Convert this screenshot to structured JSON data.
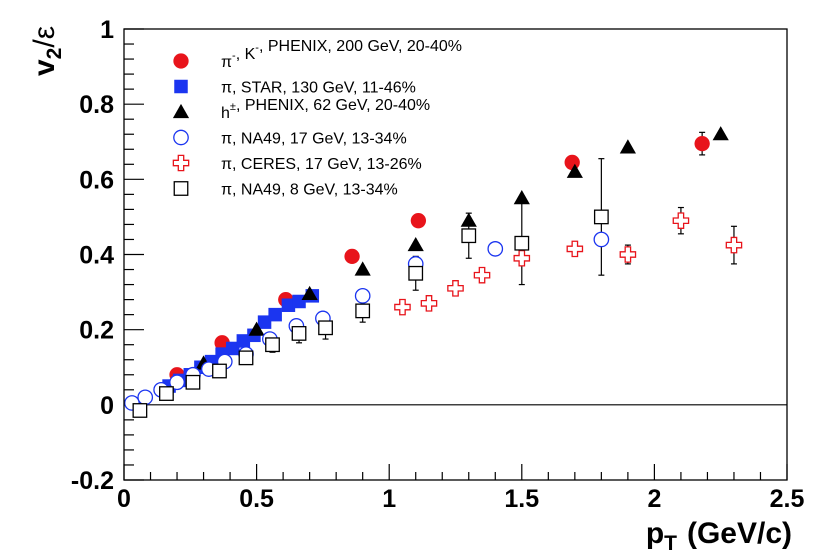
{
  "chart_data": {
    "type": "scatter",
    "title": "",
    "xlabel": "p",
    "xlabel_sub": "T",
    "xlabel_unit": "(GeV/c)",
    "ylabel": "v",
    "ylabel_sub": "2",
    "ylabel_tail": "/ε",
    "xlim": [
      0,
      2.5
    ],
    "ylim": [
      -0.2,
      1
    ],
    "x_ticks": [
      "0",
      "0.5",
      "1",
      "1.5",
      "2",
      "2.5"
    ],
    "x_tick_values": [
      0,
      0.5,
      1,
      1.5,
      2,
      2.5
    ],
    "y_ticks": [
      "-0.2",
      "0",
      "0.2",
      "0.4",
      "0.6",
      "0.8",
      "1"
    ],
    "y_tick_values": [
      -0.2,
      0,
      0.2,
      0.4,
      0.6,
      0.8,
      1
    ],
    "zero_line": true,
    "legend_position": "top-left",
    "series": [
      {
        "name": "π⁻, K⁻, PHENIX, 200 GeV, 20-40%",
        "legend": [
          "π",
          "⁻",
          ", K",
          "⁻",
          ", PHENIX, 200 GeV, 20-40%"
        ],
        "marker": "filled-circle",
        "color": "#e8141b",
        "points": [
          {
            "x": 0.2,
            "y": 0.08
          },
          {
            "x": 0.37,
            "y": 0.165
          },
          {
            "x": 0.61,
            "y": 0.28
          },
          {
            "x": 0.86,
            "y": 0.395
          },
          {
            "x": 1.11,
            "y": 0.49
          },
          {
            "x": 1.69,
            "y": 0.645
          },
          {
            "x": 2.18,
            "y": 0.695,
            "err": 0.03
          }
        ]
      },
      {
        "name": "π, STAR, 130 GeV, 11-46%",
        "legend": [
          "π, STAR, 130 GeV, 11-46%"
        ],
        "marker": "filled-square",
        "color": "#1b35f0",
        "points": [
          {
            "x": 0.17,
            "y": 0.05
          },
          {
            "x": 0.21,
            "y": 0.065
          },
          {
            "x": 0.25,
            "y": 0.08
          },
          {
            "x": 0.29,
            "y": 0.1
          },
          {
            "x": 0.33,
            "y": 0.115
          },
          {
            "x": 0.37,
            "y": 0.135
          },
          {
            "x": 0.41,
            "y": 0.15
          },
          {
            "x": 0.45,
            "y": 0.17
          },
          {
            "x": 0.49,
            "y": 0.185
          },
          {
            "x": 0.53,
            "y": 0.22
          },
          {
            "x": 0.57,
            "y": 0.24
          },
          {
            "x": 0.62,
            "y": 0.265
          },
          {
            "x": 0.66,
            "y": 0.275
          },
          {
            "x": 0.71,
            "y": 0.29
          }
        ]
      },
      {
        "name": "h±, PHENIX, 62 GeV, 20-40%",
        "legend": [
          "h",
          "±",
          ", PHENIX, 62 GeV, 20-40%"
        ],
        "marker": "filled-triangle",
        "color": "#000000",
        "points": [
          {
            "x": 0.3,
            "y": 0.11
          },
          {
            "x": 0.5,
            "y": 0.2
          },
          {
            "x": 0.7,
            "y": 0.295
          },
          {
            "x": 0.9,
            "y": 0.36
          },
          {
            "x": 1.1,
            "y": 0.425
          },
          {
            "x": 1.3,
            "y": 0.49
          },
          {
            "x": 1.5,
            "y": 0.55
          },
          {
            "x": 1.7,
            "y": 0.62
          },
          {
            "x": 1.9,
            "y": 0.685
          },
          {
            "x": 2.25,
            "y": 0.72
          }
        ]
      },
      {
        "name": "π, NA49, 17 GeV, 13-34%",
        "legend": [
          "π, NA49, 17 GeV, 13-34%"
        ],
        "marker": "open-circle",
        "color": "#1b35f0",
        "points": [
          {
            "x": 0.03,
            "y": 0.005
          },
          {
            "x": 0.08,
            "y": 0.02
          },
          {
            "x": 0.14,
            "y": 0.04
          },
          {
            "x": 0.2,
            "y": 0.06
          },
          {
            "x": 0.26,
            "y": 0.08
          },
          {
            "x": 0.32,
            "y": 0.095
          },
          {
            "x": 0.38,
            "y": 0.115
          },
          {
            "x": 0.46,
            "y": 0.135
          },
          {
            "x": 0.55,
            "y": 0.175
          },
          {
            "x": 0.65,
            "y": 0.21
          },
          {
            "x": 0.75,
            "y": 0.23
          },
          {
            "x": 0.9,
            "y": 0.29
          },
          {
            "x": 1.1,
            "y": 0.375
          },
          {
            "x": 1.4,
            "y": 0.415
          },
          {
            "x": 1.8,
            "y": 0.44
          }
        ]
      },
      {
        "name": "π, CERES, 17 GeV, 13-26%",
        "legend": [
          "π, CERES, 17 GeV, 13-26%"
        ],
        "marker": "open-cross",
        "color": "#e8141b",
        "points": [
          {
            "x": 1.05,
            "y": 0.26
          },
          {
            "x": 1.15,
            "y": 0.27
          },
          {
            "x": 1.25,
            "y": 0.31
          },
          {
            "x": 1.35,
            "y": 0.345
          },
          {
            "x": 1.5,
            "y": 0.39,
            "err": 0.02
          },
          {
            "x": 1.7,
            "y": 0.415
          },
          {
            "x": 1.9,
            "y": 0.4,
            "err": 0.025
          },
          {
            "x": 2.1,
            "y": 0.49,
            "err": 0.035
          },
          {
            "x": 2.3,
            "y": 0.425,
            "err": 0.05
          }
        ]
      },
      {
        "name": "π, NA49, 8 GeV, 13-34%",
        "legend": [
          "π, NA49, 8 GeV, 13-34%"
        ],
        "marker": "open-square",
        "color": "#000000",
        "points": [
          {
            "x": 0.06,
            "y": -0.015
          },
          {
            "x": 0.16,
            "y": 0.03
          },
          {
            "x": 0.26,
            "y": 0.06
          },
          {
            "x": 0.36,
            "y": 0.09
          },
          {
            "x": 0.46,
            "y": 0.125
          },
          {
            "x": 0.56,
            "y": 0.16,
            "err": 0.02
          },
          {
            "x": 0.66,
            "y": 0.19,
            "err": 0.025
          },
          {
            "x": 0.76,
            "y": 0.205,
            "err": 0.03
          },
          {
            "x": 0.9,
            "y": 0.25,
            "err": 0.03
          },
          {
            "x": 1.1,
            "y": 0.35,
            "err": 0.045
          },
          {
            "x": 1.3,
            "y": 0.45,
            "err": 0.06
          },
          {
            "x": 1.5,
            "y": 0.43,
            "err": 0.11
          },
          {
            "x": 1.8,
            "y": 0.5,
            "err": 0.155
          }
        ]
      }
    ]
  }
}
